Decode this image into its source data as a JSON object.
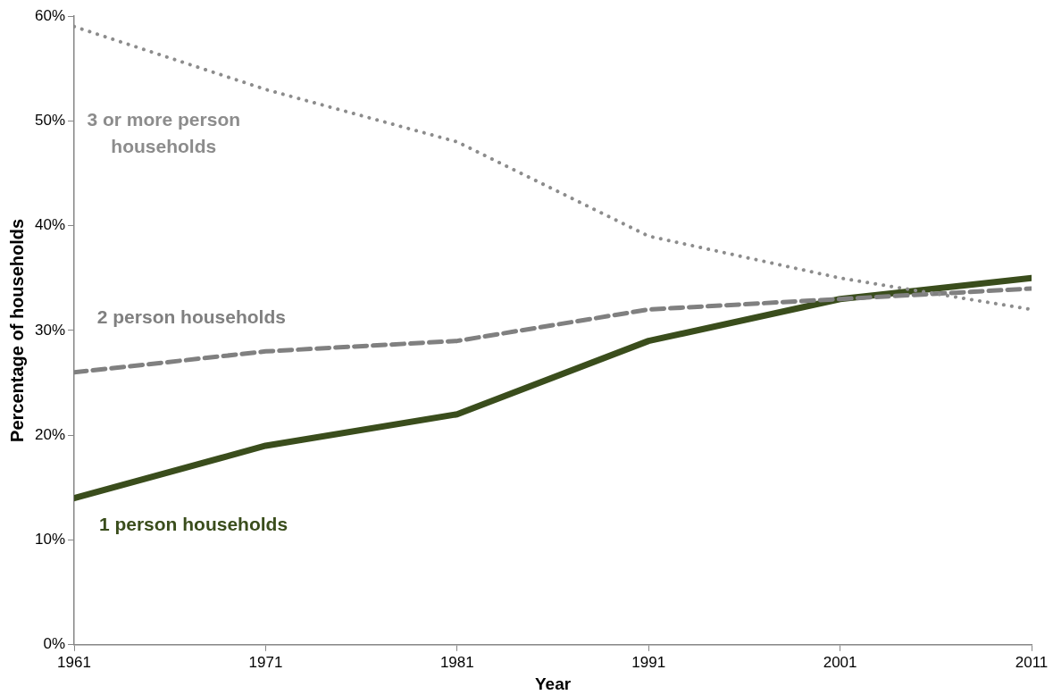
{
  "chart_data": {
    "type": "line",
    "xlabel": "Year",
    "ylabel": "Percentage of households",
    "x": [
      1961,
      1971,
      1981,
      1991,
      2001,
      2011
    ],
    "series": [
      {
        "name": "3 or more person households",
        "color": "#8c8c8c",
        "line_style": "dotted",
        "values": [
          59,
          53,
          48,
          39,
          35,
          32
        ]
      },
      {
        "name": "2 person households",
        "color": "#808080",
        "line_style": "dashed",
        "values": [
          26,
          28,
          29,
          32,
          33,
          34
        ]
      },
      {
        "name": "1 person households",
        "color": "#3a4d1c",
        "line_style": "solid",
        "values": [
          14,
          19,
          22,
          29,
          33,
          35
        ]
      }
    ],
    "xlim": [
      1961,
      2011
    ],
    "xticks": [
      1961,
      1971,
      1981,
      1991,
      2001,
      2011
    ],
    "ylim": [
      0,
      60
    ],
    "yticks": [
      {
        "value": 0,
        "label": "0%"
      },
      {
        "value": 10,
        "label": "10%"
      },
      {
        "value": 20,
        "label": "20%"
      },
      {
        "value": 30,
        "label": "30%"
      },
      {
        "value": 40,
        "label": "40%"
      },
      {
        "value": 50,
        "label": "50%"
      },
      {
        "value": 60,
        "label": "60%"
      }
    ],
    "grid": false,
    "legend": false,
    "marker": "none"
  }
}
